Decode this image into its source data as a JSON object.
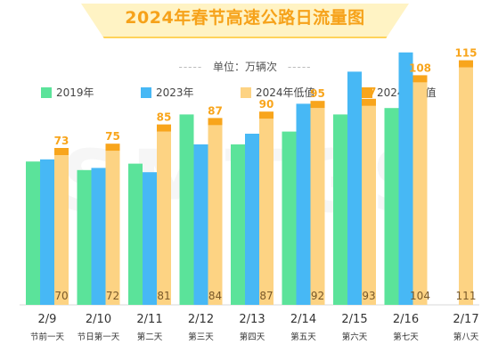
{
  "title": "2024年春节高速公路日流量图",
  "unit": "单位：万辆次",
  "unit_dashes": "-----",
  "watermark": "SMTGS",
  "colors": {
    "s2019": "#5be39a",
    "s2023": "#47b8f5",
    "low": "#fdd383",
    "high": "#f8a51c",
    "high_label": "#f8a51c",
    "low_label": "#7a5a2a"
  },
  "chart_data": {
    "type": "bar",
    "title": "2024年春节高速公路日流量图",
    "ylabel": "单位：万辆次",
    "legend_position": "top",
    "categories": [
      "2/9",
      "2/10",
      "2/11",
      "2/12",
      "2/13",
      "2/14",
      "2/15",
      "2/16",
      "2/17"
    ],
    "subcategories": [
      "节前一天",
      "节日第一天",
      "第二天",
      "第三天",
      "第四天",
      "第五天",
      "第六天",
      "第七天",
      "第八天"
    ],
    "series": [
      {
        "name": "2019年",
        "values": [
          67,
          63,
          66,
          89,
          75,
          81,
          89,
          92,
          null
        ]
      },
      {
        "name": "2023年",
        "values": [
          68,
          64,
          62,
          75,
          80,
          94,
          109,
          118,
          null
        ]
      },
      {
        "name": "2024年低值",
        "values": [
          70,
          72,
          81,
          84,
          87,
          92,
          93,
          104,
          111
        ]
      },
      {
        "name": "2024年高值",
        "values": [
          73,
          75,
          85,
          87,
          90,
          95,
          97,
          108,
          115
        ]
      }
    ],
    "ylim": [
      0,
      130
    ],
    "grid": false
  }
}
